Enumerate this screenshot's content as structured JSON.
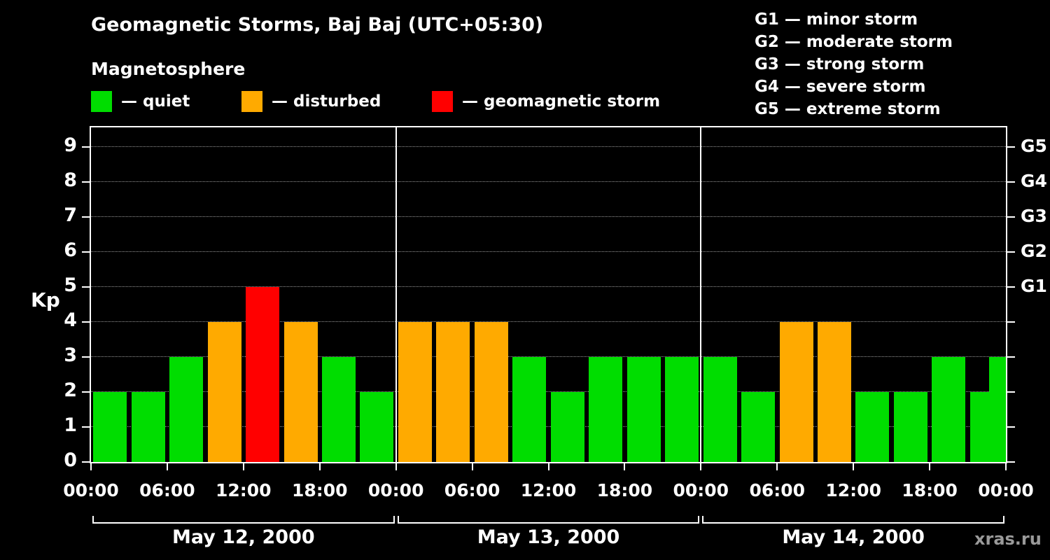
{
  "title": "Geomagnetic Storms, Baj Baj (UTC+05:30)",
  "subtitle": "Magnetosphere",
  "legend": {
    "quiet": {
      "label": "— quiet",
      "color": "#00dd00"
    },
    "disturbed": {
      "label": "— disturbed",
      "color": "#ffaa00"
    },
    "storm": {
      "label": "— geomagnetic storm",
      "color": "#ff0000"
    }
  },
  "g_scale": [
    "G1 — minor storm",
    "G2 — moderate storm",
    "G3 — strong storm",
    "G4 — severe storm",
    "G5 — extreme storm"
  ],
  "axes": {
    "y_label": "Kp",
    "y_ticks": [
      "0",
      "1",
      "2",
      "3",
      "4",
      "5",
      "6",
      "7",
      "8",
      "9"
    ],
    "g_ticks": [
      {
        "label": "G1",
        "kp": 5
      },
      {
        "label": "G2",
        "kp": 6
      },
      {
        "label": "G3",
        "kp": 7
      },
      {
        "label": "G4",
        "kp": 8
      },
      {
        "label": "G5",
        "kp": 9
      }
    ],
    "x_ticks": [
      "00:00",
      "06:00",
      "12:00",
      "18:00",
      "00:00",
      "06:00",
      "12:00",
      "18:00",
      "00:00",
      "06:00",
      "12:00",
      "18:00",
      "00:00"
    ]
  },
  "days": [
    {
      "date": "May 12, 2000",
      "kp": [
        2,
        2,
        3,
        4,
        5,
        4,
        3,
        2
      ]
    },
    {
      "date": "May 13, 2000",
      "kp": [
        4,
        4,
        4,
        3,
        2,
        3,
        3,
        3
      ]
    },
    {
      "date": "May 14, 2000",
      "kp": [
        3,
        2,
        4,
        4,
        2,
        2,
        3,
        2
      ]
    }
  ],
  "partial_next_bar_kp": 3,
  "watermark": "xras.ru",
  "chart_data": {
    "type": "bar",
    "title": "Geomagnetic Storms, Baj Baj (UTC+05:30)",
    "subtitle": "Magnetosphere",
    "ylabel": "Kp",
    "ylim": [
      0,
      9.6
    ],
    "y_ticks": [
      0,
      1,
      2,
      3,
      4,
      5,
      6,
      7,
      8,
      9
    ],
    "interval_hours": 3,
    "x_tick_labels": [
      "00:00",
      "06:00",
      "12:00",
      "18:00",
      "00:00",
      "06:00",
      "12:00",
      "18:00",
      "00:00",
      "06:00",
      "12:00",
      "18:00",
      "00:00"
    ],
    "categories": [
      "May 12, 2000",
      "May 13, 2000",
      "May 14, 2000"
    ],
    "series": [
      {
        "name": "May 12, 2000",
        "values": [
          2,
          2,
          3,
          4,
          5,
          4,
          3,
          2
        ]
      },
      {
        "name": "May 13, 2000",
        "values": [
          4,
          4,
          4,
          3,
          2,
          3,
          3,
          3
        ]
      },
      {
        "name": "May 14, 2000",
        "values": [
          3,
          2,
          4,
          4,
          2,
          2,
          3,
          2
        ]
      }
    ],
    "trailing_partial_value": 3,
    "color_rules": [
      {
        "condition": "Kp <= 3",
        "label": "quiet",
        "color": "#00dd00"
      },
      {
        "condition": "Kp = 4",
        "label": "disturbed",
        "color": "#ffaa00"
      },
      {
        "condition": "Kp >= 5",
        "label": "geomagnetic storm",
        "color": "#ff0000"
      }
    ],
    "right_axis": {
      "G1": 5,
      "G2": 6,
      "G3": 7,
      "G4": 8,
      "G5": 9
    },
    "grid": "horizontal dotted lines at integer Kp; solid vertical lines at day boundaries",
    "legend_position": "top-left",
    "background": "#000000"
  }
}
